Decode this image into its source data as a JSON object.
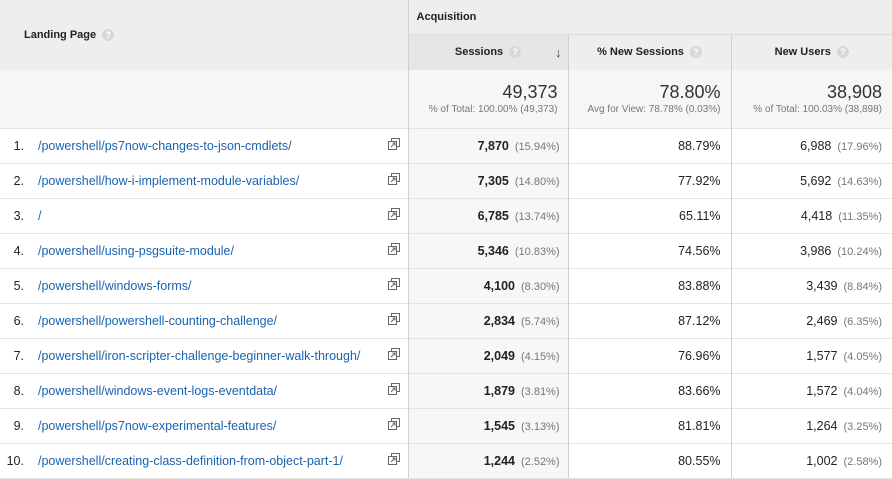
{
  "header": {
    "landing_page_label": "Landing Page",
    "help_glyph": "?",
    "acquisition_label": "Acquisition",
    "sessions_label": "Sessions",
    "sort_arrow": "↓",
    "new_sessions_label": "% New Sessions",
    "new_users_label": "New Users"
  },
  "totals": {
    "sessions_value": "49,373",
    "sessions_sub": "% of Total: 100.00% (49,373)",
    "new_sessions_value": "78.80%",
    "new_sessions_sub": "Avg for View: 78.78% (0.03%)",
    "new_users_value": "38,908",
    "new_users_sub": "% of Total: 100.03% (38,898)"
  },
  "icons": {
    "popout": "popout-icon",
    "help": "help-icon",
    "sort": "sort-descending-icon"
  },
  "colors": {
    "link": "#1a63b0",
    "header_bg": "#eeeeee"
  },
  "rows": [
    {
      "index": "1.",
      "page": "/powershell/ps7now-changes-to-json-cmdlets/",
      "sessions": "7,870",
      "sessions_pct": "(15.94%)",
      "new_sessions": "88.79%",
      "new_users": "6,988",
      "new_users_pct": "(17.96%)"
    },
    {
      "index": "2.",
      "page": "/powershell/how-i-implement-module-variables/",
      "sessions": "7,305",
      "sessions_pct": "(14.80%)",
      "new_sessions": "77.92%",
      "new_users": "5,692",
      "new_users_pct": "(14.63%)"
    },
    {
      "index": "3.",
      "page": "/",
      "sessions": "6,785",
      "sessions_pct": "(13.74%)",
      "new_sessions": "65.11%",
      "new_users": "4,418",
      "new_users_pct": "(11.35%)"
    },
    {
      "index": "4.",
      "page": "/powershell/using-psgsuite-module/",
      "sessions": "5,346",
      "sessions_pct": "(10.83%)",
      "new_sessions": "74.56%",
      "new_users": "3,986",
      "new_users_pct": "(10.24%)"
    },
    {
      "index": "5.",
      "page": "/powershell/windows-forms/",
      "sessions": "4,100",
      "sessions_pct": "(8.30%)",
      "new_sessions": "83.88%",
      "new_users": "3,439",
      "new_users_pct": "(8.84%)"
    },
    {
      "index": "6.",
      "page": "/powershell/powershell-counting-challenge/",
      "sessions": "2,834",
      "sessions_pct": "(5.74%)",
      "new_sessions": "87.12%",
      "new_users": "2,469",
      "new_users_pct": "(6.35%)"
    },
    {
      "index": "7.",
      "page": "/powershell/iron-scripter-challenge-beginner-walk-through/",
      "sessions": "2,049",
      "sessions_pct": "(4.15%)",
      "new_sessions": "76.96%",
      "new_users": "1,577",
      "new_users_pct": "(4.05%)"
    },
    {
      "index": "8.",
      "page": "/powershell/windows-event-logs-eventdata/",
      "sessions": "1,879",
      "sessions_pct": "(3.81%)",
      "new_sessions": "83.66%",
      "new_users": "1,572",
      "new_users_pct": "(4.04%)"
    },
    {
      "index": "9.",
      "page": "/powershell/ps7now-experimental-features/",
      "sessions": "1,545",
      "sessions_pct": "(3.13%)",
      "new_sessions": "81.81%",
      "new_users": "1,264",
      "new_users_pct": "(3.25%)"
    },
    {
      "index": "10.",
      "page": "/powershell/creating-class-definition-from-object-part-1/",
      "sessions": "1,244",
      "sessions_pct": "(2.52%)",
      "new_sessions": "80.55%",
      "new_users": "1,002",
      "new_users_pct": "(2.58%)"
    }
  ]
}
